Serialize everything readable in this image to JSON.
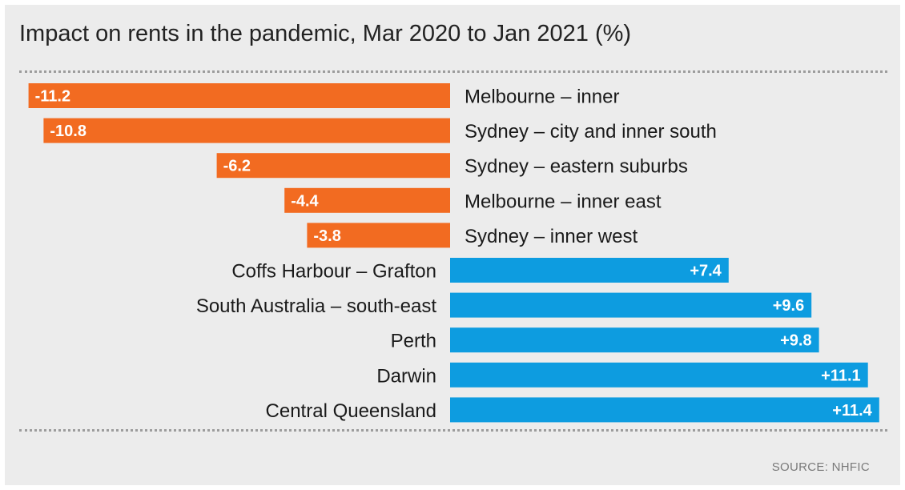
{
  "chart_data": {
    "type": "bar",
    "orientation": "horizontal",
    "title": "Impact on rents in the pandemic, Mar 2020 to Jan 2021 (%)",
    "categories": [
      "Melbourne – inner",
      "Sydney – city and inner south",
      "Sydney – eastern suburbs",
      "Melbourne – inner east",
      "Sydney – inner west",
      "Coffs Harbour – Grafton",
      "South Australia – south-east",
      "Perth",
      "Darwin",
      "Central Queensland"
    ],
    "values": [
      -11.2,
      -10.8,
      -6.2,
      -4.4,
      -3.8,
      7.4,
      9.6,
      9.8,
      11.1,
      11.4
    ],
    "data_labels": [
      "-11.2",
      "-10.8",
      "-6.2",
      "-4.4",
      "-3.8",
      "+7.4",
      "+9.6",
      "+9.8",
      "+11.1",
      "+11.4"
    ],
    "colors": {
      "negative": "#f26b21",
      "positive": "#0d9ce0"
    },
    "xlim": [
      -11.2,
      11.4
    ],
    "grid": false,
    "legend": "none"
  },
  "source": "SOURCE: NHFIC"
}
